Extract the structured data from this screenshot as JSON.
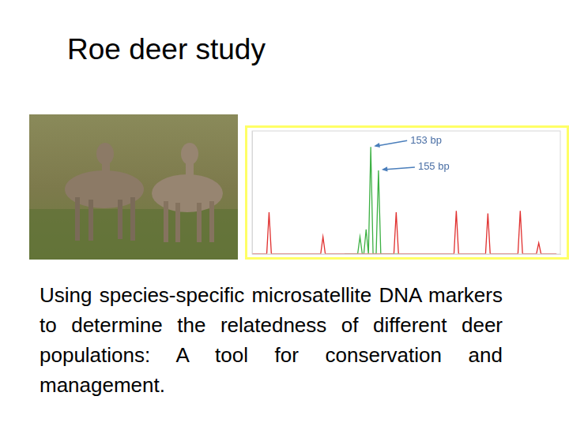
{
  "slide": {
    "title": "Roe deer study",
    "caption": "Using species-specific microsatellite DNA markers to determine the relatedness of different deer populations: A tool for conservation and management."
  },
  "chart_data": {
    "type": "line",
    "grid": false,
    "tick_labels": false,
    "xlim": [
      0,
      400
    ],
    "ylim": [
      0,
      100
    ],
    "series": [
      {
        "color": "#e0302f",
        "x": [
          0,
          19,
          22,
          25,
          89,
          92,
          95,
          184,
          187,
          190,
          262,
          265,
          268,
          303,
          306,
          309,
          345,
          348,
          351,
          369,
          372,
          375,
          395
        ],
        "values": [
          0,
          0,
          34,
          0,
          0,
          14,
          0,
          0,
          34,
          0,
          0,
          35,
          0,
          0,
          33,
          0,
          0,
          35,
          0,
          0,
          9,
          0,
          0
        ]
      },
      {
        "color": "#3cb043",
        "x": [
          120,
          137,
          140,
          143,
          145,
          148,
          151,
          154,
          157,
          161,
          164,
          167,
          190
        ],
        "values": [
          0,
          0,
          14,
          0,
          0,
          20,
          0,
          87,
          0,
          0,
          68,
          0,
          0
        ]
      }
    ],
    "annotations": [
      {
        "text": "153 bp",
        "x": 154,
        "y": 87
      },
      {
        "text": "155 bp",
        "x": 164,
        "y": 68
      }
    ]
  }
}
